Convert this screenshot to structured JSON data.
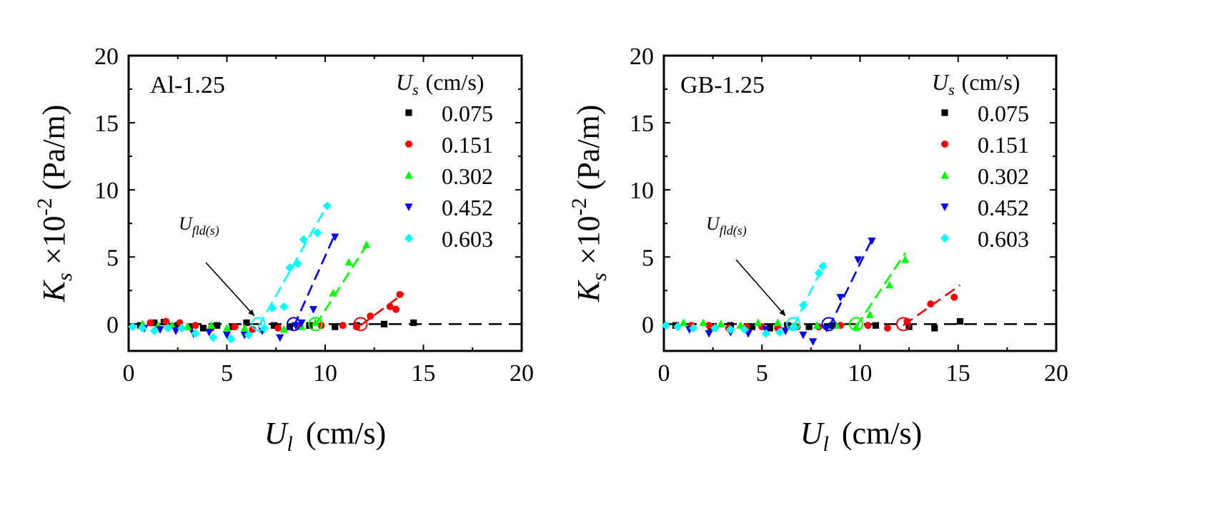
{
  "figure": {
    "y_title": {
      "main": "K",
      "sub": "s",
      "mid": " ×10",
      "sup": "-2",
      "unit": " (Pa/m)"
    },
    "x_title": {
      "main": "U",
      "sub": "l",
      "unit": "(cm/s)"
    },
    "legend_title": {
      "main": "U",
      "sub": "s",
      "unit": "(cm/s)"
    },
    "annotation": {
      "main": "U",
      "sub": "fld(s)"
    }
  },
  "chart_data": [
    {
      "type": "scatter",
      "panel_label": "Al-1.25",
      "xlim": [
        0,
        20
      ],
      "ylim": [
        -2,
        20
      ],
      "xticks": [
        "0",
        "5",
        "10",
        "15",
        "20"
      ],
      "yticks": [
        "0",
        "5",
        "10",
        "15",
        "20"
      ],
      "legend_placement": "top-right",
      "grid": false,
      "baseline_y": 0,
      "annotation_target": [
        6.6,
        0
      ],
      "series": [
        {
          "name": "0.075",
          "color": "#000000",
          "marker": "square",
          "points": [
            [
              0.6,
              -0.1
            ],
            [
              1.3,
              0.1
            ],
            [
              1.8,
              0.15
            ],
            [
              2.5,
              -0.1
            ],
            [
              3.1,
              -0.2
            ],
            [
              3.8,
              -0.3
            ],
            [
              4.5,
              -0.1
            ],
            [
              5.3,
              -0.2
            ],
            [
              6,
              0.1
            ],
            [
              7.4,
              -0.1
            ],
            [
              8.2,
              -0.2
            ],
            [
              9.2,
              -0.1
            ],
            [
              10.5,
              -0.2
            ],
            [
              11.6,
              -0.1
            ],
            [
              13,
              0
            ],
            [
              14.5,
              0.1
            ]
          ],
          "fit": null,
          "onset": null
        },
        {
          "name": "0.151",
          "color": "#ff0000",
          "marker": "circle",
          "points": [
            [
              1.1,
              0.1
            ],
            [
              1.9,
              0.2
            ],
            [
              2.6,
              0.1
            ],
            [
              3.4,
              -0.1
            ],
            [
              4.2,
              -0.3
            ],
            [
              5.4,
              -0.2
            ],
            [
              6.3,
              -0.4
            ],
            [
              7.6,
              -0.3
            ],
            [
              8.7,
              -0.2
            ],
            [
              9.8,
              -0.1
            ],
            [
              10.9,
              -0.1
            ],
            [
              11.6,
              -0.2
            ],
            [
              12.3,
              0.6
            ],
            [
              13.3,
              1.3
            ],
            [
              13.6,
              1.1
            ],
            [
              13.8,
              2.2
            ]
          ],
          "fit": [
            [
              11.8,
              -0.1
            ],
            [
              14,
              2.3
            ]
          ],
          "onset": 11.8
        },
        {
          "name": "0.302",
          "color": "#00ff00",
          "marker": "triangle-up",
          "points": [
            [
              0.7,
              0
            ],
            [
              1.5,
              -0.1
            ],
            [
              2.2,
              -0.1
            ],
            [
              3,
              -0.2
            ],
            [
              4.2,
              -0.1
            ],
            [
              5,
              -0.3
            ],
            [
              5.9,
              -0.3
            ],
            [
              6.8,
              -0.4
            ],
            [
              7.9,
              -0.4
            ],
            [
              8.8,
              -0.2
            ],
            [
              9.5,
              0.1
            ],
            [
              10.4,
              2.3
            ],
            [
              11.2,
              4.6
            ],
            [
              12.1,
              5.9
            ]
          ],
          "fit": [
            [
              9.5,
              -0.1
            ],
            [
              12.2,
              6.1
            ]
          ],
          "onset": 9.5
        },
        {
          "name": "0.452",
          "color": "#0000ff",
          "marker": "triangle-down",
          "points": [
            [
              0.8,
              -0.3
            ],
            [
              1.6,
              -0.4
            ],
            [
              2.4,
              -0.5
            ],
            [
              3.3,
              -0.7
            ],
            [
              4.1,
              -0.6
            ],
            [
              5,
              -0.8
            ],
            [
              5.9,
              -0.8
            ],
            [
              6.8,
              -0.5
            ],
            [
              7.7,
              -1
            ],
            [
              8.5,
              -0.1
            ],
            [
              8.8,
              0.1
            ],
            [
              9.4,
              1.1
            ],
            [
              10.5,
              6.5
            ]
          ],
          "fit": [
            [
              8.4,
              -0.2
            ],
            [
              10.5,
              6.7
            ]
          ],
          "onset": 8.4
        },
        {
          "name": "0.603",
          "color": "#00ffff",
          "marker": "diamond",
          "points": [
            [
              0.2,
              -0.2
            ],
            [
              0.7,
              -0.3
            ],
            [
              1.3,
              -0.5
            ],
            [
              2,
              -0.3
            ],
            [
              2.7,
              -0.3
            ],
            [
              3.4,
              -0.7
            ],
            [
              4.3,
              -1
            ],
            [
              5.2,
              -1.1
            ],
            [
              6.1,
              -0.8
            ],
            [
              6.9,
              -0.3
            ],
            [
              7.3,
              1.2
            ],
            [
              7.9,
              1.3
            ],
            [
              8.2,
              4.2
            ],
            [
              8.6,
              4.5
            ],
            [
              8.9,
              6.3
            ],
            [
              9.6,
              6.8
            ],
            [
              10.1,
              8.8
            ]
          ],
          "fit": [
            [
              6.6,
              -0.2
            ],
            [
              10,
              8.6
            ]
          ],
          "onset": 6.6
        }
      ]
    },
    {
      "type": "scatter",
      "panel_label": "GB-1.25",
      "xlim": [
        0,
        20
      ],
      "ylim": [
        -2,
        20
      ],
      "xticks": [
        "0",
        "5",
        "10",
        "15",
        "20"
      ],
      "yticks": [
        "0",
        "5",
        "10",
        "15",
        "20"
      ],
      "legend_placement": "top-right",
      "grid": false,
      "baseline_y": 0,
      "annotation_target": [
        6.4,
        0
      ],
      "series": [
        {
          "name": "0.075",
          "color": "#000000",
          "marker": "square",
          "points": [
            [
              0.6,
              -0.1
            ],
            [
              1.4,
              -0.2
            ],
            [
              2.4,
              -0.2
            ],
            [
              3.4,
              -0.1
            ],
            [
              4.5,
              -0.2
            ],
            [
              5.4,
              -0.3
            ],
            [
              6.3,
              -0.1
            ],
            [
              7.4,
              -0.2
            ],
            [
              8.6,
              -0.1
            ],
            [
              10.8,
              -0.1
            ],
            [
              12.5,
              -0.2
            ],
            [
              13.8,
              -0.3
            ],
            [
              15.1,
              0.2
            ]
          ],
          "fit": null,
          "onset": null
        },
        {
          "name": "0.151",
          "color": "#ff0000",
          "marker": "circle",
          "points": [
            [
              1.4,
              -0.1
            ],
            [
              2.3,
              -0.1
            ],
            [
              3.3,
              -0.3
            ],
            [
              4.2,
              -0.2
            ],
            [
              5,
              -0.2
            ],
            [
              5.8,
              -0.3
            ],
            [
              6.8,
              -0.2
            ],
            [
              7.9,
              -0.2
            ],
            [
              9,
              -0.1
            ],
            [
              10.4,
              -0.1
            ],
            [
              11.4,
              -0.3
            ],
            [
              12.4,
              0.2
            ],
            [
              13.6,
              1.5
            ],
            [
              14.8,
              2
            ]
          ],
          "fit": [
            [
              12.2,
              -0.1
            ],
            [
              15.1,
              2.9
            ]
          ],
          "onset": 12.2
        },
        {
          "name": "0.302",
          "color": "#00ff00",
          "marker": "triangle-up",
          "points": [
            [
              1,
              0.1
            ],
            [
              2,
              0.1
            ],
            [
              2.9,
              0
            ],
            [
              3.9,
              -0.1
            ],
            [
              4.8,
              0.1
            ],
            [
              5.8,
              0.1
            ],
            [
              6.7,
              -0.1
            ],
            [
              7.8,
              -0.1
            ],
            [
              8.8,
              -0.1
            ],
            [
              9.8,
              -0.2
            ],
            [
              10.5,
              0.7
            ],
            [
              11.5,
              2.9
            ],
            [
              12.3,
              4.8
            ]
          ],
          "fit": [
            [
              9.8,
              -0.2
            ],
            [
              12.3,
              5.3
            ]
          ],
          "onset": 9.8
        },
        {
          "name": "0.452",
          "color": "#0000ff",
          "marker": "triangle-down",
          "points": [
            [
              1.3,
              -0.4
            ],
            [
              2.3,
              -0.7
            ],
            [
              3.4,
              -0.6
            ],
            [
              4.3,
              -0.7
            ],
            [
              5.2,
              -0.4
            ],
            [
              6.2,
              -0.5
            ],
            [
              7.1,
              -0.8
            ],
            [
              7.6,
              -1.3
            ],
            [
              8.3,
              -0.3
            ],
            [
              9,
              2
            ],
            [
              9.9,
              4.8
            ],
            [
              10.6,
              6.2
            ]
          ],
          "fit": [
            [
              8.4,
              -0.3
            ],
            [
              10.6,
              6.3
            ]
          ],
          "onset": 8.4
        },
        {
          "name": "0.603",
          "color": "#00ffff",
          "marker": "diamond",
          "points": [
            [
              0.1,
              -0.1
            ],
            [
              0.7,
              -0.2
            ],
            [
              1.5,
              -0.3
            ],
            [
              2.6,
              -0.3
            ],
            [
              3.4,
              -0.4
            ],
            [
              4.1,
              -0.4
            ],
            [
              5.2,
              -0.7
            ],
            [
              5.9,
              -0.6
            ],
            [
              6.6,
              -0.2
            ],
            [
              7.1,
              1.4
            ],
            [
              7.9,
              3.8
            ],
            [
              8.1,
              4.3
            ]
          ],
          "fit": [
            [
              6.6,
              -0.2
            ],
            [
              8.2,
              4.6
            ]
          ],
          "onset": 6.6
        }
      ]
    }
  ]
}
